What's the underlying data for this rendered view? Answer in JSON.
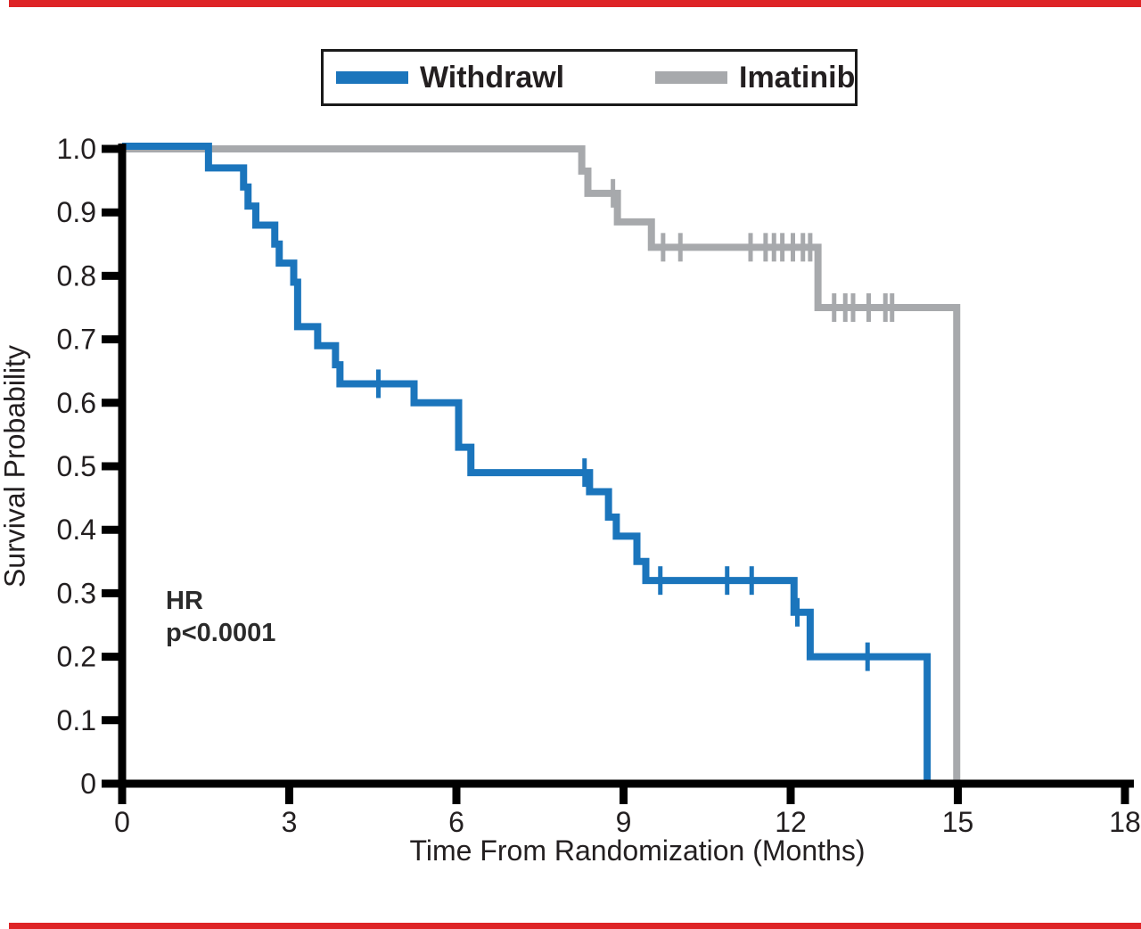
{
  "accent_color": "#DE2426",
  "legend": {
    "items": [
      {
        "label": "Withdrawl",
        "color": "#1B75BC"
      },
      {
        "label": "Imatinib",
        "color": "#A7A9AC"
      }
    ]
  },
  "annotation": {
    "line1": "HR",
    "line2": "p<0.0001"
  },
  "chart_data": {
    "type": "line",
    "subtype": "kaplan-meier-step",
    "title": "",
    "xlabel": "Time From Randomization (Months)",
    "ylabel": "Survival Probability",
    "xlim": [
      0,
      18
    ],
    "ylim": [
      0,
      1.0
    ],
    "grid": false,
    "legend_position": "top",
    "x_ticks": [
      0,
      3,
      6,
      9,
      12,
      15,
      18
    ],
    "y_tick_values": [
      1.0,
      0.9,
      0.8,
      0.7,
      0.6,
      0.5,
      0.4,
      0.3,
      0.2,
      0.1,
      0
    ],
    "y_tick_labels": [
      "1.0",
      "0.9",
      "0.8",
      "0.7",
      "0.6",
      "0.5",
      "0.4",
      "0.3",
      "0.2",
      "0.1",
      "0"
    ],
    "series": [
      {
        "name": "Imatinib",
        "color": "#A7A9AC",
        "points": [
          [
            0,
            1.0
          ],
          [
            8.25,
            0.965
          ],
          [
            8.36,
            0.93
          ],
          [
            8.89,
            0.885
          ],
          [
            9.5,
            0.845
          ],
          [
            12.49,
            0.75
          ],
          [
            14.98,
            0
          ]
        ],
        "censors": [
          [
            8.81,
            0.93
          ],
          [
            9.71,
            0.845
          ],
          [
            10.02,
            0.845
          ],
          [
            11.28,
            0.845
          ],
          [
            11.55,
            0.845
          ],
          [
            11.7,
            0.845
          ],
          [
            11.85,
            0.845
          ],
          [
            12.04,
            0.845
          ],
          [
            12.22,
            0.845
          ],
          [
            12.35,
            0.845
          ],
          [
            12.78,
            0.75
          ],
          [
            12.98,
            0.75
          ],
          [
            13.12,
            0.75
          ],
          [
            13.4,
            0.75
          ],
          [
            13.7,
            0.75
          ],
          [
            13.82,
            0.75
          ]
        ]
      },
      {
        "name": "Withdrawl",
        "color": "#1B75BC",
        "points": [
          [
            0,
            1.0
          ],
          [
            1.55,
            0.97
          ],
          [
            2.18,
            0.94
          ],
          [
            2.26,
            0.91
          ],
          [
            2.4,
            0.88
          ],
          [
            2.74,
            0.85
          ],
          [
            2.82,
            0.82
          ],
          [
            3.08,
            0.79
          ],
          [
            3.15,
            0.72
          ],
          [
            3.51,
            0.69
          ],
          [
            3.83,
            0.66
          ],
          [
            3.91,
            0.63
          ],
          [
            5.24,
            0.6
          ],
          [
            6.04,
            0.53
          ],
          [
            6.26,
            0.49
          ],
          [
            8.39,
            0.46
          ],
          [
            8.73,
            0.42
          ],
          [
            8.87,
            0.39
          ],
          [
            9.24,
            0.35
          ],
          [
            9.4,
            0.32
          ],
          [
            12.06,
            0.27
          ],
          [
            12.35,
            0.2
          ],
          [
            14.45,
            0
          ]
        ],
        "censors": [
          [
            4.6,
            0.63
          ],
          [
            8.3,
            0.49
          ],
          [
            9.66,
            0.32
          ],
          [
            10.86,
            0.32
          ],
          [
            11.3,
            0.32
          ],
          [
            12.12,
            0.27
          ],
          [
            13.38,
            0.2
          ]
        ]
      }
    ]
  }
}
